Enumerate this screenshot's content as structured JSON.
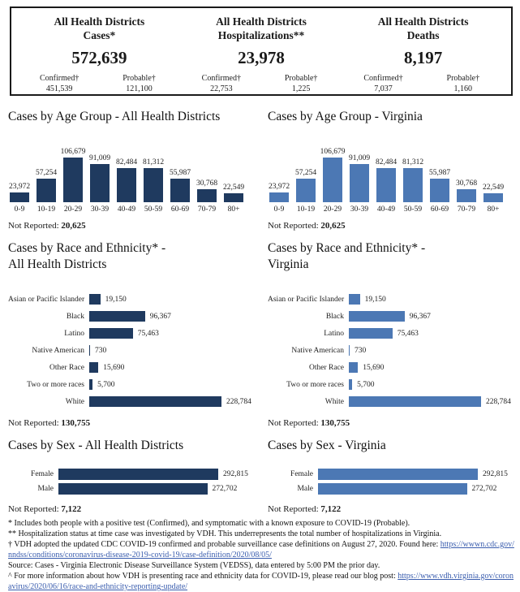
{
  "colors": {
    "dark_navy": "#1f3a5f",
    "medium_blue": "#4c78b4",
    "link_blue": "#3a5dae",
    "border": "#1a1a1a"
  },
  "summary": {
    "cards": [
      {
        "title": "All Health Districts\nCases*",
        "total": "572,639",
        "confirmed_label": "Confirmed†",
        "confirmed_value": "451,539",
        "probable_label": "Probable†",
        "probable_value": "121,100"
      },
      {
        "title": "All Health Districts\nHospitalizations**",
        "total": "23,978",
        "confirmed_label": "Confirmed†",
        "confirmed_value": "22,753",
        "probable_label": "Probable†",
        "probable_value": "1,225"
      },
      {
        "title": "All Health Districts\nDeaths",
        "total": "8,197",
        "confirmed_label": "Confirmed†",
        "confirmed_value": "7,037",
        "probable_label": "Probable†",
        "probable_value": "1,160"
      }
    ]
  },
  "chart_data": [
    {
      "type": "bar",
      "orientation": "vertical",
      "title": "Cases by Age Group - All Health Districts",
      "categories": [
        "0-9",
        "10-19",
        "20-29",
        "30-39",
        "40-49",
        "50-59",
        "60-69",
        "70-79",
        "80+"
      ],
      "values": [
        23972,
        57254,
        106679,
        91009,
        82484,
        81312,
        55987,
        30768,
        22549
      ],
      "value_labels": [
        "23,972",
        "57,254",
        "106,679",
        "91,009",
        "82,484",
        "81,312",
        "55,987",
        "30,768",
        "22,549"
      ],
      "bar_color": "#1f3a5f",
      "ylim": [
        0,
        106679
      ],
      "grid": false,
      "legend": "none",
      "not_reported_label": "Not Reported:",
      "not_reported": "20,625"
    },
    {
      "type": "bar",
      "orientation": "vertical",
      "title": "Cases by Age Group - Virginia",
      "categories": [
        "0-9",
        "10-19",
        "20-29",
        "30-39",
        "40-49",
        "50-59",
        "60-69",
        "70-79",
        "80+"
      ],
      "values": [
        23972,
        57254,
        106679,
        91009,
        82484,
        81312,
        55987,
        30768,
        22549
      ],
      "value_labels": [
        "23,972",
        "57,254",
        "106,679",
        "91,009",
        "82,484",
        "81,312",
        "55,987",
        "30,768",
        "22,549"
      ],
      "bar_color": "#4c78b4",
      "ylim": [
        0,
        106679
      ],
      "grid": false,
      "legend": "none",
      "not_reported_label": "Not Reported:",
      "not_reported": "20,625"
    },
    {
      "type": "bar",
      "orientation": "horizontal",
      "title": "Cases by Race and Ethnicity* -\nAll Health Districts",
      "categories": [
        "Asian or Pacific Islander",
        "Black",
        "Latino",
        "Native American",
        "Other Race",
        "Two or more races",
        "White"
      ],
      "values": [
        19150,
        96367,
        75463,
        730,
        15690,
        5700,
        228784
      ],
      "value_labels": [
        "19,150",
        "96,367",
        "75,463",
        "730",
        "15,690",
        "5,700",
        "228,784"
      ],
      "bar_color": "#1f3a5f",
      "xlim": [
        0,
        228784
      ],
      "grid": false,
      "legend": "none",
      "not_reported_label": "Not Reported:",
      "not_reported": "130,755"
    },
    {
      "type": "bar",
      "orientation": "horizontal",
      "title": "Cases by Race and Ethnicity* -\nVirginia",
      "categories": [
        "Asian or Pacific Islander",
        "Black",
        "Latino",
        "Native American",
        "Other Race",
        "Two or more races",
        "White"
      ],
      "values": [
        19150,
        96367,
        75463,
        730,
        15690,
        5700,
        228784
      ],
      "value_labels": [
        "19,150",
        "96,367",
        "75,463",
        "730",
        "15,690",
        "5,700",
        "228,784"
      ],
      "bar_color": "#4c78b4",
      "xlim": [
        0,
        228784
      ],
      "grid": false,
      "legend": "none",
      "not_reported_label": "Not Reported:",
      "not_reported": "130,755"
    },
    {
      "type": "bar",
      "orientation": "horizontal",
      "title": "Cases by Sex - All Health Districts",
      "categories": [
        "Female",
        "Male"
      ],
      "values": [
        292815,
        272702
      ],
      "value_labels": [
        "292,815",
        "272,702"
      ],
      "bar_color": "#1f3a5f",
      "xlim": [
        0,
        292815
      ],
      "grid": false,
      "legend": "none",
      "not_reported_label": "Not Reported:",
      "not_reported": "7,122"
    },
    {
      "type": "bar",
      "orientation": "horizontal",
      "title": "Cases by Sex - Virginia",
      "categories": [
        "Female",
        "Male"
      ],
      "values": [
        292815,
        272702
      ],
      "value_labels": [
        "292,815",
        "272,702"
      ],
      "bar_color": "#4c78b4",
      "xlim": [
        0,
        292815
      ],
      "grid": false,
      "legend": "none",
      "not_reported_label": "Not Reported:",
      "not_reported": "7,122"
    }
  ],
  "footnotes": [
    {
      "text": "* Includes both people with a positive test (Confirmed), and symptomatic with a known exposure to COVID-19 (Probable)."
    },
    {
      "text": "** Hospitalization status at time case was investigated by VDH. This underrepresents the total number of hospitalizations in Virginia."
    },
    {
      "text": "† VDH adopted the updated CDC COVID-19 confirmed and probable surveillance case definitions on August 27, 2020. Found here: ",
      "link": "https://wwwn.cdc.gov/nndss/conditions/coronavirus-disease-2019-covid-19/case-definition/2020/08/05/"
    },
    {
      "text": "Source:  Cases - Virginia Electronic Disease Surveillance System (VEDSS), data entered by 5:00 PM the prior day."
    },
    {
      "text": "^ For more information about how VDH is presenting race and ethnicity data for COVID-19, please read our blog post: ",
      "link": "https://www.vdh.virginia.gov/coronavirus/2020/06/16/race-and-ethnicity-reporting-update/"
    }
  ]
}
